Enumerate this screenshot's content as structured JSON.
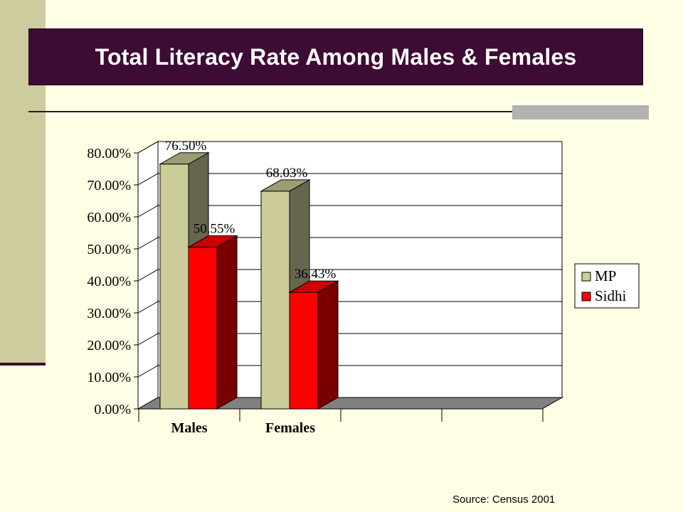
{
  "slide": {
    "title": "Total Literacy Rate Among Males & Females",
    "source": "Source: Census 2001"
  },
  "colors": {
    "title_bg": "#3d0b33",
    "accent_dark": "#3a0c30",
    "side_strip": "#cdcc9f",
    "background": "#ffffe5",
    "mp": "#cccc99",
    "sidhi": "#ff0000"
  },
  "chart_data": {
    "type": "bar",
    "categories": [
      "Males",
      "Females"
    ],
    "series": [
      {
        "name": "MP",
        "values": [
          76.5,
          68.03
        ],
        "labels": [
          "76.50%",
          "68.03%"
        ],
        "color": "#cccc99"
      },
      {
        "name": "Sidhi",
        "values": [
          50.55,
          36.43
        ],
        "labels": [
          "50.55%",
          "36.43%"
        ],
        "color": "#ff0000"
      }
    ],
    "y_ticks": [
      "0.00%",
      "10.00%",
      "20.00%",
      "30.00%",
      "40.00%",
      "50.00%",
      "60.00%",
      "70.00%",
      "80.00%"
    ],
    "ylim": [
      0,
      80
    ],
    "grid": true,
    "three_d": true,
    "legend_position": "right",
    "title": "",
    "xlabel": "",
    "ylabel": ""
  }
}
